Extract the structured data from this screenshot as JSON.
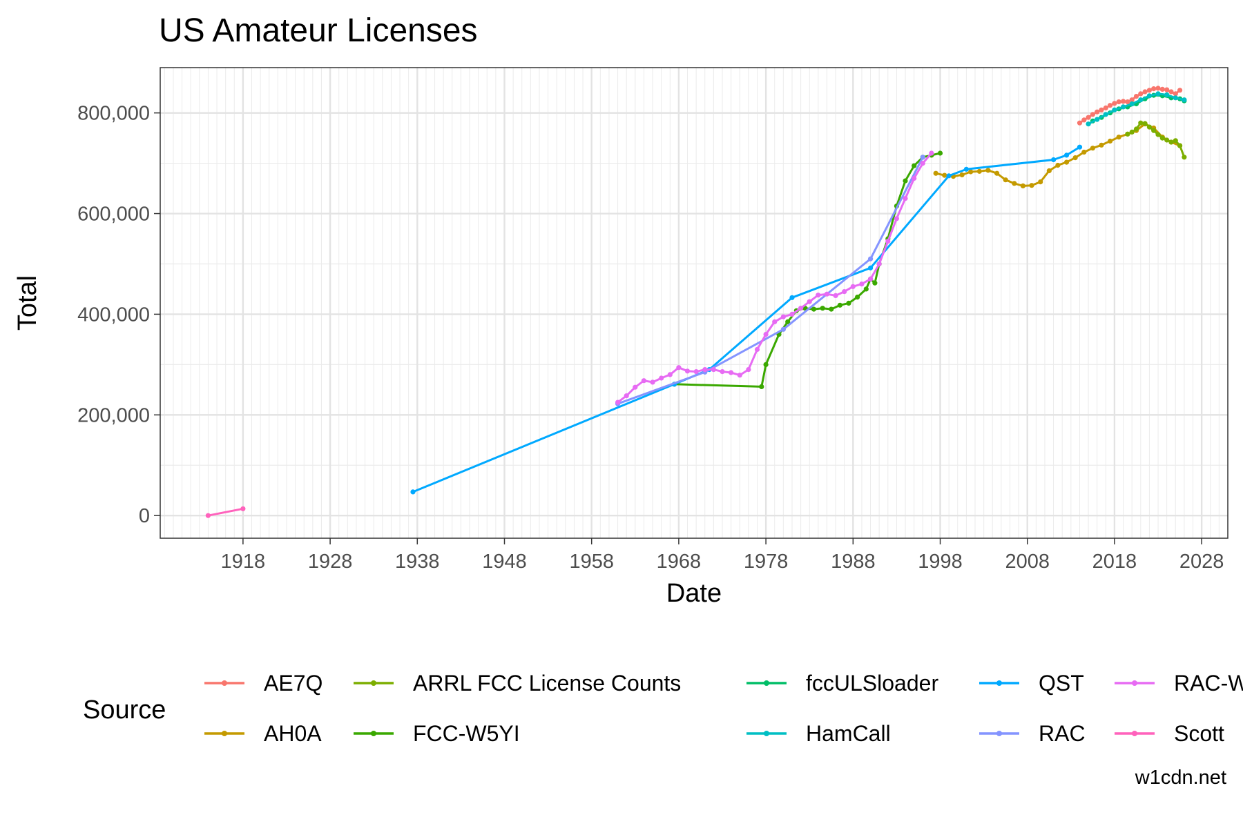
{
  "chart_data": {
    "type": "line",
    "title": "US Amateur Licenses",
    "xlabel": "Date",
    "ylabel": "Total",
    "caption": "w1cdn.net",
    "legend_title": "Source",
    "legend_position": "bottom",
    "grid": true,
    "xlim": [
      1908.5,
      2031
    ],
    "ylim": [
      -45000,
      890000
    ],
    "x_ticks": [
      1918,
      1928,
      1938,
      1948,
      1958,
      1968,
      1978,
      1988,
      1998,
      2008,
      2018,
      2028
    ],
    "x_tick_labels": [
      "1918",
      "1928",
      "1938",
      "1948",
      "1958",
      "1968",
      "1978",
      "1988",
      "1998",
      "2008",
      "2018",
      "2028"
    ],
    "y_ticks": [
      0,
      200000,
      400000,
      600000,
      800000
    ],
    "y_tick_labels": [
      "0",
      "200,000",
      "400,000",
      "600,000",
      "800,000"
    ],
    "series": [
      {
        "name": "AE7Q",
        "color": "#F8766D",
        "x": [
          2014.0,
          2014.5,
          2015.0,
          2015.5,
          2016.0,
          2016.5,
          2017.0,
          2017.5,
          2018.0,
          2018.5,
          2019.0,
          2019.5,
          2020.0,
          2020.5,
          2021.0,
          2021.5,
          2022.0,
          2022.5,
          2023.0,
          2023.5,
          2024.0,
          2024.5,
          2025.0,
          2025.5
        ],
        "y": [
          780000,
          786000,
          791000,
          797000,
          802000,
          806000,
          810000,
          815000,
          819000,
          822000,
          823000,
          822000,
          826000,
          833000,
          838000,
          842000,
          845000,
          848000,
          849000,
          847000,
          846000,
          842000,
          838000,
          845000
        ]
      },
      {
        "name": "AH0A",
        "color": "#C49A00",
        "x": [
          1997.5,
          1998.5,
          1999.5,
          2000.5,
          2001.5,
          2002.5,
          2003.5,
          2004.5,
          2005.5,
          2006.5,
          2007.5,
          2008.5,
          2009.5,
          2010.5,
          2011.5,
          2012.5,
          2013.5,
          2014.5,
          2015.5,
          2016.5,
          2017.5,
          2018.5,
          2019.5,
          2020.5,
          2021.5,
          2022.5,
          2023.5,
          2024.5,
          2025.5
        ],
        "y": [
          680000,
          676000,
          674000,
          677000,
          683000,
          684000,
          686000,
          680000,
          667000,
          660000,
          655000,
          656000,
          663000,
          685000,
          696000,
          702000,
          711000,
          722000,
          730000,
          736000,
          744000,
          752000,
          758000,
          765000,
          778000,
          770000,
          752000,
          742000,
          735000
        ]
      },
      {
        "name": "ARRL FCC License Counts",
        "color": "#7CAE00",
        "x": [
          2019.5,
          2020.0,
          2020.5,
          2021.0,
          2021.5,
          2022.0,
          2022.5,
          2023.0,
          2023.5,
          2024.0,
          2024.5,
          2025.0,
          2025.5,
          2026.0
        ],
        "y": [
          758000,
          762000,
          768000,
          780000,
          779000,
          772000,
          765000,
          757000,
          750000,
          746000,
          742000,
          745000,
          735000,
          712000
        ]
      },
      {
        "name": "FCC-W5YI",
        "color": "#3AA800",
        "x": [
          1967.5,
          1977.5,
          1978.0,
          1979.5,
          1980.5,
          1981.5,
          1982.5,
          1983.5,
          1984.5,
          1985.5,
          1986.5,
          1987.5,
          1988.5,
          1989.5,
          1990.0,
          1990.5,
          1991.0,
          1992.0,
          1993.0,
          1994.0,
          1995.0,
          1996.0,
          1997.0,
          1998.0
        ],
        "y": [
          261000,
          256000,
          300000,
          360000,
          385000,
          407000,
          412000,
          410000,
          412000,
          410000,
          418000,
          422000,
          434000,
          450000,
          470000,
          462000,
          500000,
          550000,
          615000,
          665000,
          695000,
          712000,
          716000,
          720000
        ]
      },
      {
        "name": "fccULSloader",
        "color": "#00BE67",
        "x": [
          2015.5,
          2016.5,
          2017.5,
          2018.5,
          2019.5,
          2020.5,
          2021.5,
          2022.5,
          2023.5,
          2024.5,
          2025.5,
          2026.0
        ],
        "y": [
          784000,
          791000,
          800000,
          808000,
          812000,
          818000,
          828000,
          835000,
          834000,
          830000,
          828000,
          824000
        ]
      },
      {
        "name": "HamCall",
        "color": "#00BFC4",
        "x": [
          2015.0,
          2016.0,
          2017.0,
          2018.0,
          2019.0,
          2020.0,
          2021.0,
          2022.0,
          2023.0,
          2024.0,
          2025.0,
          2026.0
        ],
        "y": [
          778000,
          787000,
          797000,
          806000,
          812000,
          818000,
          826000,
          834000,
          838000,
          836000,
          830000,
          826000
        ]
      },
      {
        "name": "QST",
        "color": "#00A9FF",
        "x": [
          1937.5,
          1967.5,
          1971.5,
          1981.0,
          1990.0,
          1999.0,
          2001.0,
          2011.0,
          2012.5,
          2014.0
        ],
        "y": [
          47000,
          261000,
          290000,
          433000,
          492000,
          675000,
          688000,
          707000,
          716000,
          732000
        ]
      },
      {
        "name": "RAC",
        "color": "#8494FF",
        "x": [
          1961.0,
          1971.0,
          1980.0,
          1990.0,
          1996.0
        ],
        "y": [
          222000,
          285000,
          370000,
          510000,
          712000
        ]
      },
      {
        "name": "RAC-W",
        "color": "#E76BF3",
        "x": [
          1961.0,
          1962.0,
          1963.0,
          1964.0,
          1965.0,
          1966.0,
          1967.0,
          1968.0,
          1969.0,
          1970.0,
          1971.0,
          1972.0,
          1973.0,
          1974.0,
          1975.0,
          1976.0,
          1977.0,
          1978.0,
          1979.0,
          1980.0,
          1981.0,
          1982.0,
          1983.0,
          1984.0,
          1985.0,
          1986.0,
          1987.0,
          1988.0,
          1989.0,
          1990.0,
          1991.0,
          1992.0,
          1993.0,
          1994.0,
          1995.0,
          1996.0,
          1997.0
        ],
        "y": [
          225000,
          238000,
          255000,
          268000,
          265000,
          273000,
          280000,
          294000,
          287000,
          286000,
          290000,
          290000,
          286000,
          284000,
          279000,
          290000,
          330000,
          360000,
          385000,
          395000,
          400000,
          412000,
          425000,
          438000,
          440000,
          437000,
          445000,
          455000,
          460000,
          470000,
          500000,
          545000,
          590000,
          630000,
          670000,
          700000,
          720000
        ]
      },
      {
        "name": "Scott",
        "color": "#FF62BC",
        "x": [
          1914.0,
          1918.0
        ],
        "y": [
          0,
          13500
        ]
      }
    ]
  }
}
